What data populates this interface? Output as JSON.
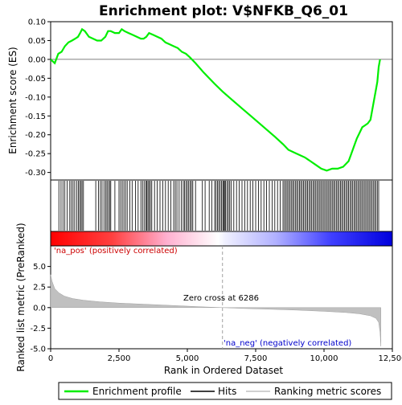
{
  "chart_data": {
    "type": "line",
    "title": "Enrichment plot: V$NFKB_Q6_01",
    "xlabel": "Rank in Ordered Dataset",
    "xlim": [
      0,
      12500
    ],
    "x_ticks": [
      0,
      2500,
      5000,
      7500,
      10000,
      12500
    ],
    "x_tick_labels": [
      "0",
      "2,500",
      "5,000",
      "7,500",
      "10,000",
      "12,500"
    ],
    "panels": {
      "es": {
        "ylabel": "Enrichment score (ES)",
        "ylim": [
          -0.32,
          0.1
        ],
        "y_ticks": [
          0.1,
          0.05,
          0.0,
          -0.05,
          -0.1,
          -0.15,
          -0.2,
          -0.25,
          -0.3
        ],
        "y_tick_labels": [
          "0.10",
          "0.05",
          "0.00",
          "-0.05",
          "-0.10",
          "-0.15",
          "-0.20",
          "-0.25",
          "-0.30"
        ],
        "series": {
          "name": "Enrichment profile",
          "color": "#00ee00",
          "x": [
            0,
            150,
            280,
            400,
            520,
            650,
            780,
            900,
            1000,
            1080,
            1150,
            1250,
            1400,
            1550,
            1700,
            1850,
            2000,
            2100,
            2200,
            2350,
            2500,
            2600,
            2700,
            2850,
            3000,
            3150,
            3300,
            3400,
            3500,
            3600,
            3750,
            3900,
            4050,
            4200,
            4350,
            4500,
            4650,
            4800,
            4950,
            5100,
            5300,
            5600,
            6000,
            6286,
            6600,
            7000,
            7400,
            7800,
            8200,
            8500,
            8700,
            9000,
            9300,
            9500,
            9700,
            9900,
            10100,
            10300,
            10500,
            10700,
            10900,
            11000,
            11100,
            11200,
            11300,
            11400,
            11500,
            11600,
            11700,
            11750,
            11800,
            11850,
            11900,
            11950,
            12000,
            12050
          ],
          "y": [
            0.0,
            -0.01,
            0.015,
            0.02,
            0.035,
            0.045,
            0.05,
            0.055,
            0.06,
            0.07,
            0.08,
            0.075,
            0.06,
            0.055,
            0.05,
            0.05,
            0.06,
            0.075,
            0.075,
            0.07,
            0.07,
            0.08,
            0.075,
            0.07,
            0.065,
            0.06,
            0.055,
            0.055,
            0.06,
            0.07,
            0.065,
            0.06,
            0.055,
            0.045,
            0.04,
            0.035,
            0.03,
            0.02,
            0.015,
            0.005,
            -0.01,
            -0.035,
            -0.065,
            -0.085,
            -0.105,
            -0.13,
            -0.155,
            -0.18,
            -0.205,
            -0.225,
            -0.24,
            -0.25,
            -0.26,
            -0.27,
            -0.28,
            -0.29,
            -0.295,
            -0.29,
            -0.29,
            -0.285,
            -0.27,
            -0.25,
            -0.23,
            -0.21,
            -0.195,
            -0.18,
            -0.175,
            -0.17,
            -0.16,
            -0.14,
            -0.12,
            -0.1,
            -0.08,
            -0.06,
            -0.02,
            0.0
          ]
        }
      },
      "hits": {
        "name": "Hits",
        "positions": [
          300,
          380,
          450,
          520,
          600,
          700,
          760,
          820,
          880,
          950,
          1010,
          1060,
          1110,
          1150,
          1200,
          1650,
          1750,
          1820,
          1880,
          1950,
          2010,
          2060,
          2110,
          2160,
          2200,
          2350,
          2500,
          2560,
          2620,
          2680,
          2740,
          2800,
          2900,
          2980,
          3100,
          3200,
          3300,
          3360,
          3420,
          3480,
          3520,
          3560,
          3600,
          3650,
          3700,
          3800,
          3900,
          4000,
          4100,
          4200,
          4300,
          4400,
          4500,
          4560,
          4620,
          4700,
          4780,
          4850,
          4900,
          4950,
          5000,
          5050,
          5100,
          5150,
          5200,
          5300,
          5550,
          5650,
          5800,
          5900,
          6000,
          6050,
          6100,
          6150,
          6200,
          6250,
          6300,
          6330,
          6360,
          6400,
          6450,
          6500,
          6550,
          6600,
          6700,
          6800,
          6900,
          7000,
          7100,
          7200,
          7300,
          7400,
          7500,
          7600,
          7700,
          7800,
          7900,
          8000,
          8100,
          8200,
          8300,
          8400,
          8500,
          8550,
          8600,
          8650,
          8700,
          8750,
          8800,
          8850,
          8900,
          8950,
          9000,
          9050,
          9100,
          9150,
          9200,
          9250,
          9300,
          9350,
          9400,
          9450,
          9500,
          9550,
          9600,
          9650,
          9700,
          9750,
          9800,
          9850,
          9900,
          9950,
          10000,
          10050,
          10100,
          10150,
          10200,
          10250,
          10300,
          10350,
          10400,
          10450,
          10500,
          10550,
          10600,
          10650,
          10700,
          10750,
          10800,
          10850,
          10900,
          10950,
          11000,
          11050,
          11100,
          11150,
          11200,
          11250,
          11300,
          11350,
          11400,
          11450,
          11500,
          11550,
          11600,
          11650,
          11700,
          11750,
          11800,
          11850,
          11900,
          11950,
          12000
        ]
      },
      "ranked_metric": {
        "name": "Ranking metric scores",
        "ylabel": "Ranked list metric (PreRanked)",
        "ylim": [
          -5.0,
          7.5
        ],
        "y_ticks": [
          5.0,
          2.5,
          0.0,
          -2.5,
          -5.0
        ],
        "y_tick_labels": [
          "5.0",
          "2.5",
          "0.0",
          "-2.5",
          "-5.0"
        ],
        "x": [
          0,
          50,
          150,
          300,
          500,
          800,
          1200,
          1800,
          2500,
          3500,
          4500,
          5500,
          6286,
          7000,
          8000,
          9000,
          10000,
          10800,
          11300,
          11700,
          11900,
          12000,
          12050,
          12080
        ],
        "y": [
          4.0,
          3.2,
          2.3,
          1.8,
          1.4,
          1.1,
          0.9,
          0.7,
          0.55,
          0.4,
          0.25,
          0.1,
          0.0,
          -0.1,
          -0.2,
          -0.3,
          -0.45,
          -0.6,
          -0.75,
          -1.0,
          -1.3,
          -1.8,
          -3.0,
          -4.7
        ]
      }
    },
    "annotations": {
      "zero_cross": "Zero cross at 6286",
      "zero_cross_x": 6286,
      "na_pos": "'na_pos' (positively correlated)",
      "na_neg": "'na_neg' (negatively correlated)"
    },
    "legend": {
      "placement": "bottom",
      "items": [
        {
          "label": "Enrichment profile",
          "color": "#00ee00"
        },
        {
          "label": "Hits",
          "color": "#000000"
        },
        {
          "label": "Ranking metric scores",
          "color": "#c0c0c0"
        }
      ]
    },
    "colors": {
      "pos": "#ff0000",
      "neg": "#0000ff",
      "zero_line": "#a0a0a0",
      "na_pos_text": "#cc0000",
      "na_neg_text": "#0000cc"
    }
  }
}
